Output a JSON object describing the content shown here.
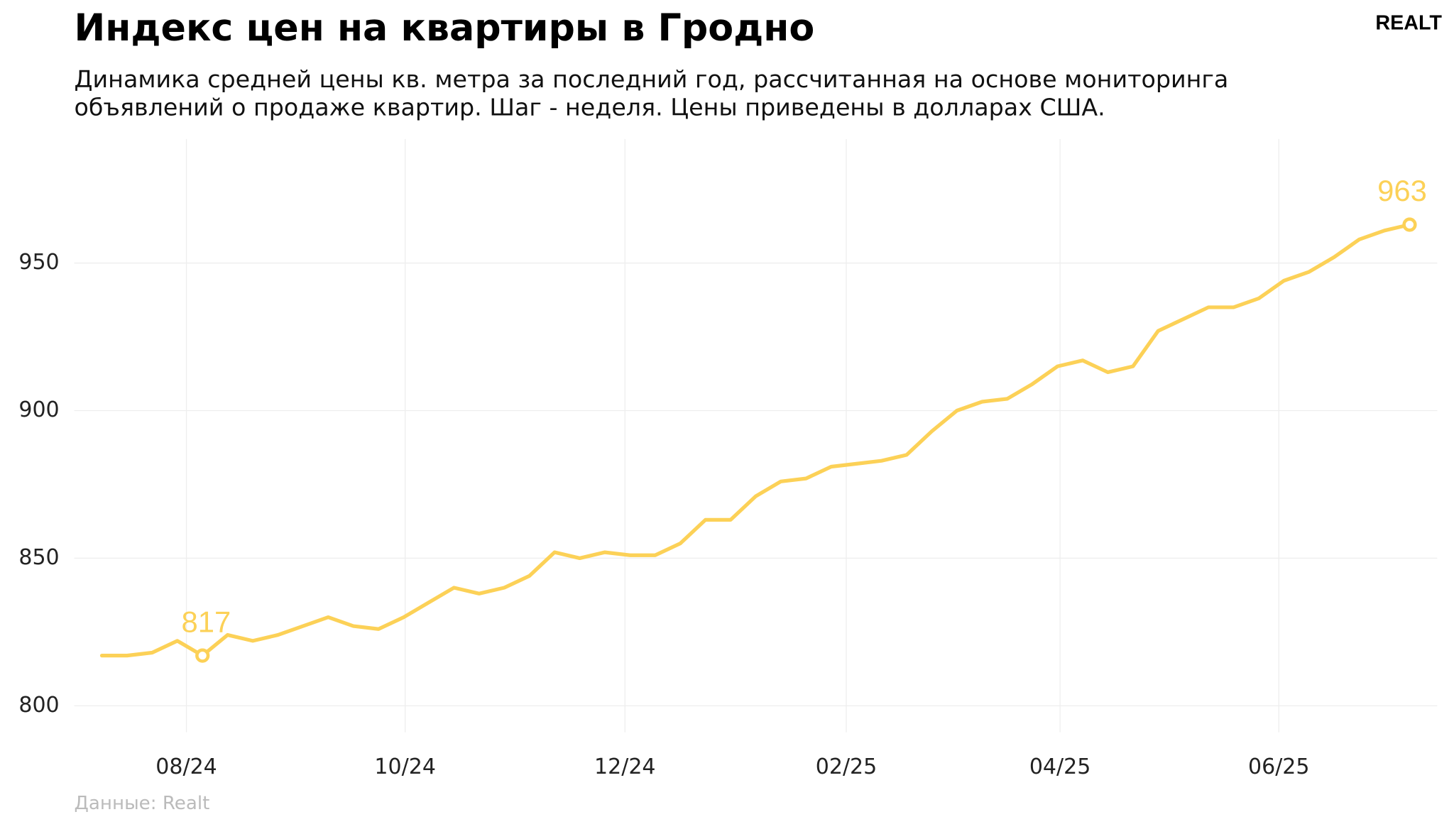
{
  "chart_data": {
    "type": "line",
    "title": "Индекс цен на квартиры в Гродно",
    "subtitle": [
      "Динамика средней цены кв. метра за последний год, рассчитанная на основе мониторинга",
      "объявлений о продаже квартир. Шаг - неделя. Цены приведены в долларах США."
    ],
    "logo": "REALT",
    "source": "Данные: Realt",
    "color": "#fcd157",
    "x": [
      0,
      1,
      2,
      3,
      4,
      5,
      6,
      7,
      8,
      9,
      10,
      11,
      12,
      13,
      14,
      15,
      16,
      17,
      18,
      19,
      20,
      21,
      22,
      23,
      24,
      25,
      26,
      27,
      28,
      29,
      30,
      31,
      32,
      33,
      34,
      35,
      36,
      37,
      38,
      39,
      40,
      41,
      42,
      43,
      44,
      45,
      46,
      47,
      48,
      49,
      50,
      51,
      52
    ],
    "values": [
      817,
      817,
      818,
      822,
      817,
      824,
      822,
      824,
      827,
      830,
      827,
      826,
      830,
      835,
      840,
      838,
      840,
      844,
      852,
      850,
      852,
      851,
      851,
      855,
      863,
      863,
      871,
      876,
      877,
      881,
      882,
      883,
      885,
      893,
      900,
      903,
      904,
      909,
      915,
      917,
      913,
      915,
      927,
      931,
      935,
      935,
      938,
      944,
      947,
      952,
      958,
      961,
      963
    ],
    "value_labels": [
      null,
      null,
      null,
      null,
      "817",
      null,
      null,
      null,
      null,
      null,
      null,
      null,
      null,
      null,
      null,
      null,
      null,
      null,
      null,
      null,
      null,
      null,
      null,
      null,
      null,
      null,
      null,
      null,
      null,
      null,
      null,
      null,
      null,
      null,
      null,
      null,
      null,
      null,
      null,
      null,
      null,
      null,
      null,
      null,
      null,
      null,
      null,
      null,
      null,
      null,
      null,
      null,
      "963"
    ],
    "xlim": [
      -1.1,
      53.1
    ],
    "xticks": [
      {
        "value": 3.36,
        "label": "08/24"
      },
      {
        "value": 12.06,
        "label": "10/24"
      },
      {
        "value": 20.8,
        "label": "12/24"
      },
      {
        "value": 29.6,
        "label": "02/25"
      },
      {
        "value": 38.1,
        "label": "04/25"
      },
      {
        "value": 46.8,
        "label": "06/25"
      }
    ],
    "ylim": [
      791,
      992
    ],
    "yticks": [
      800,
      850,
      900,
      950
    ],
    "grid": true
  }
}
